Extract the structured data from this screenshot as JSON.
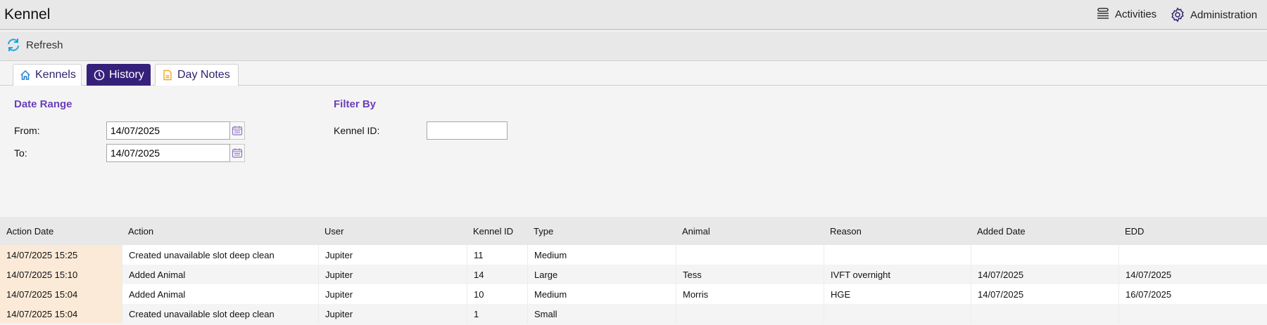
{
  "header": {
    "title": "Kennel",
    "activities_label": "Activities",
    "activities_icon": "list-icon",
    "administration_label": "Administration",
    "administration_icon": "gear-icon"
  },
  "toolbar": {
    "refresh_label": "Refresh",
    "refresh_icon": "refresh-icon"
  },
  "tabs": [
    {
      "label": "Kennels",
      "icon": "home-icon"
    },
    {
      "label": "History",
      "icon": "clock-icon",
      "active": true
    },
    {
      "label": "Day Notes",
      "icon": "note-icon"
    }
  ],
  "date_range": {
    "title": "Date Range",
    "from_label": "From:",
    "from_value": "14/07/2025",
    "to_label": "To:",
    "to_value": "14/07/2025"
  },
  "filter": {
    "title": "Filter By",
    "kennel_id_label": "Kennel ID:",
    "kennel_id_value": ""
  },
  "table": {
    "columns": [
      "Action Date",
      "Action",
      "User",
      "Kennel ID",
      "Type",
      "Animal",
      "Reason",
      "Added Date",
      "EDD"
    ],
    "rows": [
      [
        "14/07/2025 15:25",
        "Created unavailable slot deep clean",
        "Jupiter",
        "11",
        "Medium",
        "",
        "",
        "",
        ""
      ],
      [
        "14/07/2025 15:10",
        "Added Animal",
        "Jupiter",
        "14",
        "Large",
        "Tess",
        "IVFT overnight",
        "14/07/2025",
        "14/07/2025"
      ],
      [
        "14/07/2025 15:04",
        "Added Animal",
        "Jupiter",
        "10",
        "Medium",
        "Morris",
        "HGE",
        "14/07/2025",
        "16/07/2025"
      ],
      [
        "14/07/2025 15:04",
        "Created unavailable slot deep clean",
        "Jupiter",
        "1",
        "Small",
        "",
        "",
        "",
        ""
      ]
    ]
  },
  "colors": {
    "tab_active": "#35217a",
    "section_title": "#6a3fb8",
    "date_cell": "#fbead8",
    "refresh_icon": "#1fa3e0"
  }
}
